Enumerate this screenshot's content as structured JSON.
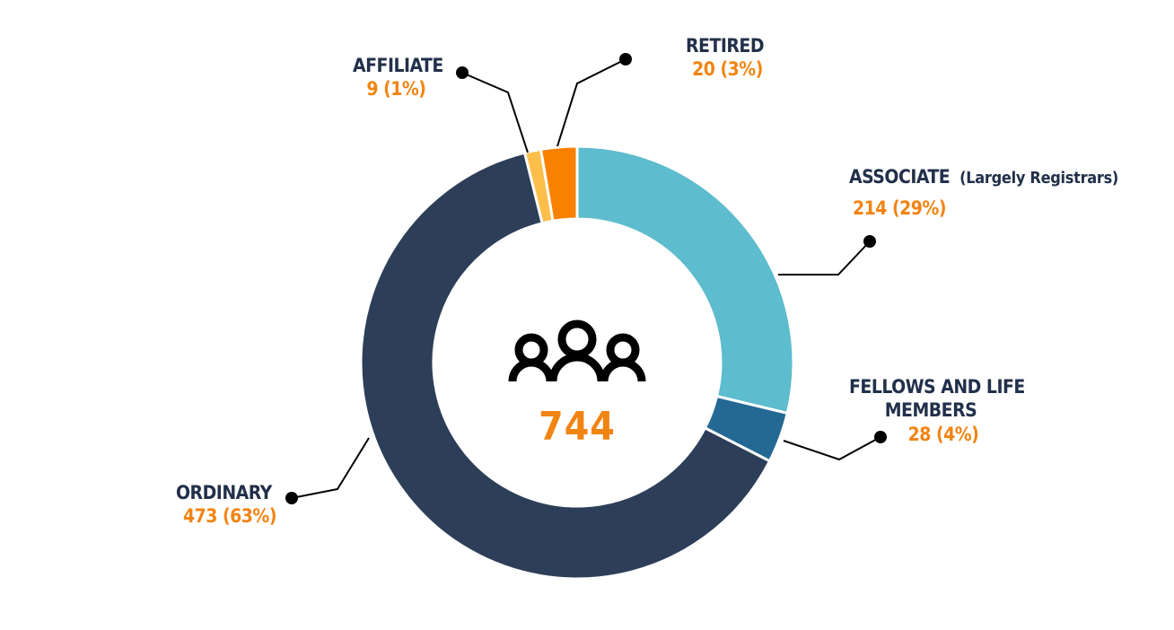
{
  "chart_data": {
    "type": "pie",
    "variant": "donut",
    "total": "744",
    "center_icon": "group-of-people-icon",
    "slices": [
      {
        "name": "ASSOCIATE",
        "note": "(Largely Registrars)",
        "value": 214,
        "percent": 29,
        "value_label": "214 (29%)",
        "color": "#5dbccd"
      },
      {
        "name": "FELLOWS AND LIFE MEMBERS",
        "name_line1": "FELLOWS AND LIFE",
        "name_line2": "MEMBERS",
        "value": 28,
        "percent": 4,
        "value_label": "28 (4%)",
        "color": "#246993"
      },
      {
        "name": "ORDINARY",
        "value": 473,
        "percent": 63,
        "value_label": "473 (63%)",
        "color": "#2d3e58"
      },
      {
        "name": "AFFILIATE",
        "value": 9,
        "percent": 1,
        "value_label": "9 (1%)",
        "color": "#fdbf4a"
      },
      {
        "name": "RETIRED",
        "value": 20,
        "percent": 3,
        "value_label": "20 (3%)",
        "color": "#f98100"
      }
    ],
    "legend": "callout-labels"
  },
  "colors": {
    "label_text": "#22304a",
    "value_text": "#f28412",
    "leader_line": "#000000"
  }
}
